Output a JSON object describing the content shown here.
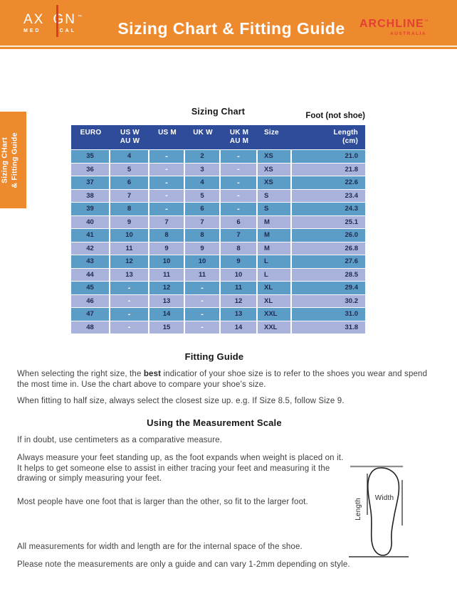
{
  "header": {
    "title": "Sizing Chart & Fitting Guide",
    "bg_color": "#EE8A2E",
    "axign": {
      "left": "AX",
      "right": "GN",
      "tm": "™",
      "sub_left": "MED",
      "sub_right": "CAL",
      "line_color": "#E0392E"
    },
    "archline": {
      "name": "ARCHLINE",
      "tm": "™",
      "sub": "AUSTRALIA",
      "color": "#E43F35"
    }
  },
  "side_tab": {
    "line1": "Sizing CHart",
    "line2": "& Fitting Guide",
    "bg_color": "#EE8A2E"
  },
  "sizing_chart": {
    "title": "Sizing Chart",
    "foot_note": "Foot (not shoe)",
    "header_bg": "#2F4C9B",
    "row_colors": [
      "#5C9DC7",
      "#A9B2DB"
    ],
    "columns": [
      [
        "EURO"
      ],
      [
        "US W",
        "AU W"
      ],
      [
        "US M"
      ],
      [
        "UK W"
      ],
      [
        "UK M",
        "AU M"
      ],
      [
        "Size"
      ],
      [
        "Length",
        "(cm)"
      ]
    ],
    "rows": [
      [
        "35",
        "4",
        "-",
        "2",
        "-",
        "XS",
        "21.0"
      ],
      [
        "36",
        "5",
        "-",
        "3",
        "-",
        "XS",
        "21.8"
      ],
      [
        "37",
        "6",
        "-",
        "4",
        "-",
        "XS",
        "22.6"
      ],
      [
        "38",
        "7",
        "-",
        "5",
        "-",
        "S",
        "23.4"
      ],
      [
        "39",
        "8",
        "-",
        "6",
        "-",
        "S",
        "24.3"
      ],
      [
        "40",
        "9",
        "7",
        "7",
        "6",
        "M",
        "25.1"
      ],
      [
        "41",
        "10",
        "8",
        "8",
        "7",
        "M",
        "26.0"
      ],
      [
        "42",
        "11",
        "9",
        "9",
        "8",
        "M",
        "26.8"
      ],
      [
        "43",
        "12",
        "10",
        "10",
        "9",
        "L",
        "27.6"
      ],
      [
        "44",
        "13",
        "11",
        "11",
        "10",
        "L",
        "28.5"
      ],
      [
        "45",
        "-",
        "12",
        "-",
        "11",
        "XL",
        "29.4"
      ],
      [
        "46",
        "-",
        "13",
        "-",
        "12",
        "XL",
        "30.2"
      ],
      [
        "47",
        "-",
        "14",
        "-",
        "13",
        "XXL",
        "31.0"
      ],
      [
        "48",
        "-",
        "15",
        "-",
        "14",
        "XXL",
        "31.8"
      ]
    ]
  },
  "fitting_guide": {
    "heading": "Fitting Guide",
    "p1_before": "When selecting the right size, the ",
    "p1_bold": "best",
    "p1_after": " indicatior of your shoe size is to refer to the shoes you wear and spend the most time in. Use the chart above to compare your shoe's size.",
    "p2": "When fitting to half size, always select the closest size up. e.g. If Size 8.5, follow Size 9."
  },
  "measurement_scale": {
    "heading": "Using the Measurement Scale",
    "p1": "If in doubt, use centimeters as a comparative measure.",
    "p2": "Always measure your feet standing up, as the foot expands when weight is placed on it. It helps to get someone else to assist in either tracing your feet and measuring it the drawing or simply measuring your feet.",
    "p3": "Most people have one foot that is larger than the other, so fit to the larger foot.",
    "p4": "All measurements for width and length are for the internal space of the shoe.",
    "p5": "Please note the measurements are only a guide and can vary 1-2mm depending on style."
  },
  "diagram": {
    "width_label": "Width",
    "length_label": "Length"
  }
}
